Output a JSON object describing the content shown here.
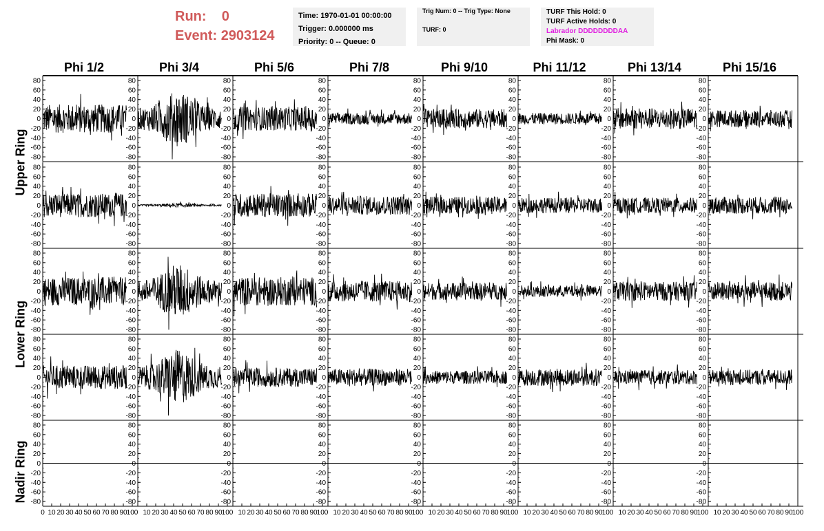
{
  "run_label": "Run:",
  "run_value": "0",
  "event_label": "Event:",
  "event_value": "2903124",
  "header_box1": {
    "time": "Time: 1970-01-01 00:00:00",
    "trigger": "Trigger: 0.000000 ms",
    "priority": "Priority: 0 -- Queue: 0"
  },
  "header_box2": {
    "trig": "Trig Num: 0 -- Trig Type: None",
    "turf": "TURF: 0"
  },
  "header_box3": {
    "hold": "TURF This Hold: 0",
    "active": "TURF Active Holds: 0",
    "labrador": "Labrador DDDDDDDDAA",
    "phimask": "Phi Mask: 0"
  },
  "phi_labels": [
    "Phi 1/2",
    "Phi 3/4",
    "Phi 5/6",
    "Phi 7/8",
    "Phi 9/10",
    "Phi 11/12",
    "Phi 13/14",
    "Phi 15/16"
  ],
  "ring_labels": [
    "Upper Ring",
    "Lower Ring",
    "Nadir Ring"
  ],
  "colors": {
    "run_text": "#d05a5a",
    "labrador_text": "#e020e0",
    "trace": "#000000",
    "box_bg": "#f0f0f0"
  },
  "chart_data": {
    "type": "line",
    "grid": "8 columns x 5 rows of waveform panels",
    "ylim": [
      -90,
      90
    ],
    "xlim": [
      0,
      100
    ],
    "y_ticks": [
      "80",
      "60",
      "40",
      "20",
      "0",
      "-20",
      "-40",
      "-60",
      "-80"
    ],
    "x_ticks_first": [
      "0",
      "10",
      "20",
      "30",
      "40",
      "50",
      "60",
      "70",
      "80",
      "90",
      "100"
    ],
    "x_ticks_rest": [
      "10",
      "20",
      "30",
      "40",
      "50",
      "60",
      "70",
      "80",
      "90",
      "100"
    ],
    "row_amplitudes": [
      [
        30,
        40,
        25,
        12,
        20,
        12,
        22,
        18
      ],
      [
        25,
        3,
        25,
        20,
        18,
        16,
        16,
        18
      ],
      [
        30,
        40,
        30,
        22,
        18,
        12,
        20,
        20
      ],
      [
        25,
        40,
        20,
        18,
        14,
        18,
        15,
        16
      ],
      [
        0,
        0,
        0,
        0,
        0,
        0,
        0,
        0
      ]
    ]
  }
}
